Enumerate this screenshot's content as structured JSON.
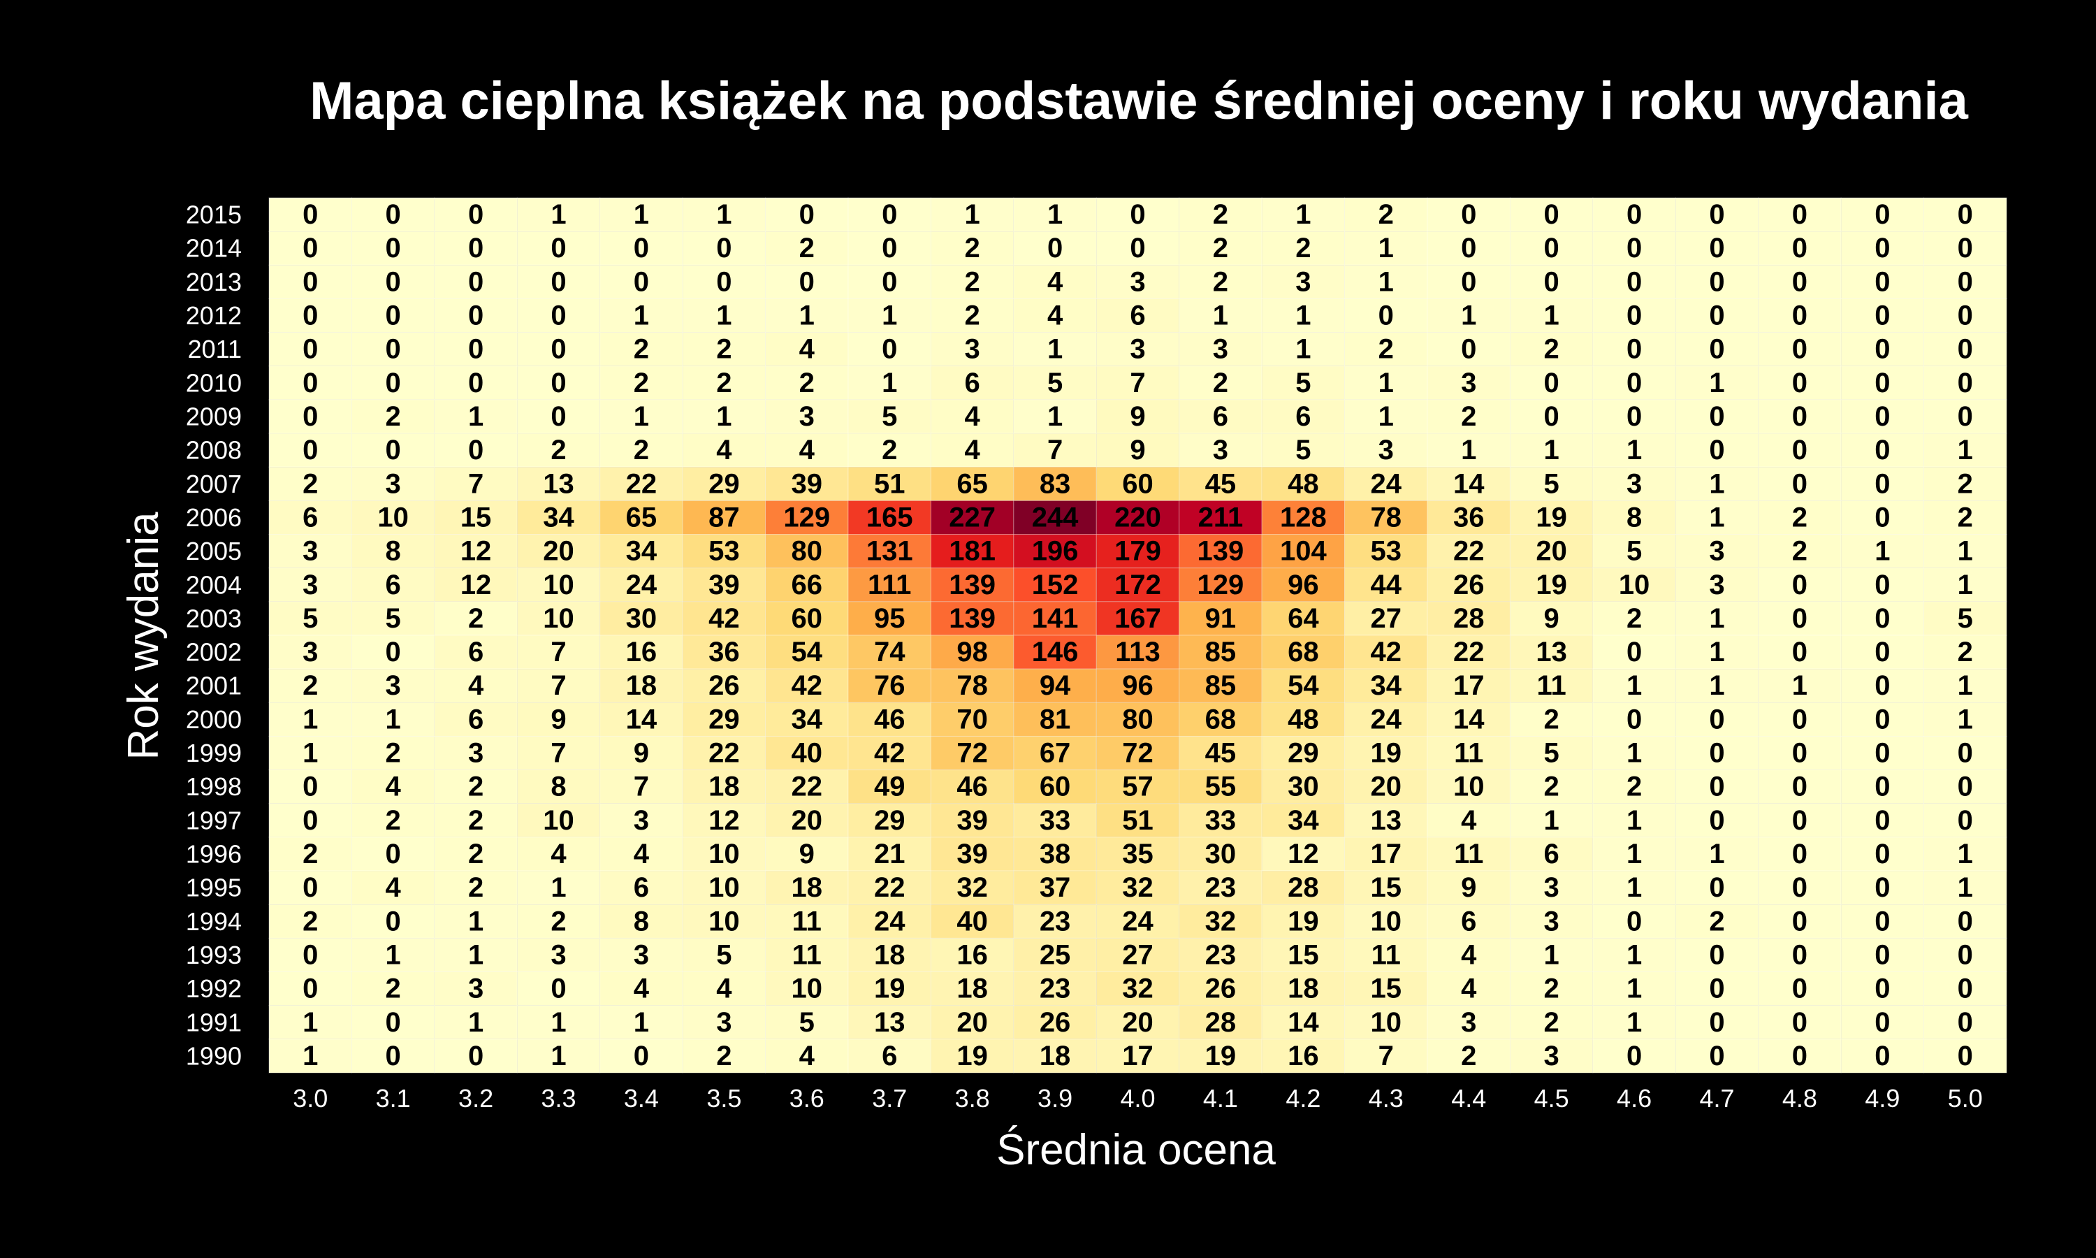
{
  "chart_data": {
    "type": "heatmap",
    "title": "Mapa cieplna książek na podstawie średniej oceny i roku wydania",
    "xlabel": "Średnia ocena",
    "ylabel": "Rok wydania",
    "x_categories": [
      "3.0",
      "3.1",
      "3.2",
      "3.3",
      "3.4",
      "3.5",
      "3.6",
      "3.7",
      "3.8",
      "3.9",
      "4.0",
      "4.1",
      "4.2",
      "4.3",
      "4.4",
      "4.5",
      "4.6",
      "4.7",
      "4.8",
      "4.9",
      "5.0"
    ],
    "y_categories": [
      "2015",
      "2014",
      "2013",
      "2012",
      "2011",
      "2010",
      "2009",
      "2008",
      "2007",
      "2006",
      "2005",
      "2004",
      "2003",
      "2002",
      "2001",
      "2000",
      "1999",
      "1998",
      "1997",
      "1996",
      "1995",
      "1994",
      "1993",
      "1992",
      "1991",
      "1990"
    ],
    "values": [
      [
        0,
        0,
        0,
        1,
        1,
        1,
        0,
        0,
        1,
        1,
        0,
        2,
        1,
        2,
        0,
        0,
        0,
        0,
        0,
        0,
        0
      ],
      [
        0,
        0,
        0,
        0,
        0,
        0,
        2,
        0,
        2,
        0,
        0,
        2,
        2,
        1,
        0,
        0,
        0,
        0,
        0,
        0,
        0
      ],
      [
        0,
        0,
        0,
        0,
        0,
        0,
        0,
        0,
        2,
        4,
        3,
        2,
        3,
        1,
        0,
        0,
        0,
        0,
        0,
        0,
        0
      ],
      [
        0,
        0,
        0,
        0,
        1,
        1,
        1,
        1,
        2,
        4,
        6,
        1,
        1,
        0,
        1,
        1,
        0,
        0,
        0,
        0,
        0
      ],
      [
        0,
        0,
        0,
        0,
        2,
        2,
        4,
        0,
        3,
        1,
        3,
        3,
        1,
        2,
        0,
        2,
        0,
        0,
        0,
        0,
        0
      ],
      [
        0,
        0,
        0,
        0,
        2,
        2,
        2,
        1,
        6,
        5,
        7,
        2,
        5,
        1,
        3,
        0,
        0,
        1,
        0,
        0,
        0
      ],
      [
        0,
        2,
        1,
        0,
        1,
        1,
        3,
        5,
        4,
        1,
        9,
        6,
        6,
        1,
        2,
        0,
        0,
        0,
        0,
        0,
        0
      ],
      [
        0,
        0,
        0,
        2,
        2,
        4,
        4,
        2,
        4,
        7,
        9,
        3,
        5,
        3,
        1,
        1,
        1,
        0,
        0,
        0,
        1
      ],
      [
        2,
        3,
        7,
        13,
        22,
        29,
        39,
        51,
        65,
        83,
        60,
        45,
        48,
        24,
        14,
        5,
        3,
        1,
        0,
        0,
        2
      ],
      [
        6,
        10,
        15,
        34,
        65,
        87,
        129,
        165,
        227,
        244,
        220,
        211,
        128,
        78,
        36,
        19,
        8,
        1,
        2,
        0,
        2
      ],
      [
        3,
        8,
        12,
        20,
        34,
        53,
        80,
        131,
        181,
        196,
        179,
        139,
        104,
        53,
        22,
        20,
        5,
        3,
        2,
        1,
        1
      ],
      [
        3,
        6,
        12,
        10,
        24,
        39,
        66,
        111,
        139,
        152,
        172,
        129,
        96,
        44,
        26,
        19,
        10,
        3,
        0,
        0,
        1
      ],
      [
        5,
        5,
        2,
        10,
        30,
        42,
        60,
        95,
        139,
        141,
        167,
        91,
        64,
        27,
        28,
        9,
        2,
        1,
        0,
        0,
        5
      ],
      [
        3,
        0,
        6,
        7,
        16,
        36,
        54,
        74,
        98,
        146,
        113,
        85,
        68,
        42,
        22,
        13,
        0,
        1,
        0,
        0,
        2
      ],
      [
        2,
        3,
        4,
        7,
        18,
        26,
        42,
        76,
        78,
        94,
        96,
        85,
        54,
        34,
        17,
        11,
        1,
        1,
        1,
        0,
        1
      ],
      [
        1,
        1,
        6,
        9,
        14,
        29,
        34,
        46,
        70,
        81,
        80,
        68,
        48,
        24,
        14,
        2,
        0,
        0,
        0,
        0,
        1
      ],
      [
        1,
        2,
        3,
        7,
        9,
        22,
        40,
        42,
        72,
        67,
        72,
        45,
        29,
        19,
        11,
        5,
        1,
        0,
        0,
        0,
        0
      ],
      [
        0,
        4,
        2,
        8,
        7,
        18,
        22,
        49,
        46,
        60,
        57,
        55,
        30,
        20,
        10,
        2,
        2,
        0,
        0,
        0,
        0
      ],
      [
        0,
        2,
        2,
        10,
        3,
        12,
        20,
        29,
        39,
        33,
        51,
        33,
        34,
        13,
        4,
        1,
        1,
        0,
        0,
        0,
        0
      ],
      [
        2,
        0,
        2,
        4,
        4,
        10,
        9,
        21,
        39,
        38,
        35,
        30,
        12,
        17,
        11,
        6,
        1,
        1,
        0,
        0,
        1
      ],
      [
        0,
        4,
        2,
        1,
        6,
        10,
        18,
        22,
        32,
        37,
        32,
        23,
        28,
        15,
        9,
        3,
        1,
        0,
        0,
        0,
        1
      ],
      [
        2,
        0,
        1,
        2,
        8,
        10,
        11,
        24,
        40,
        23,
        24,
        32,
        19,
        10,
        6,
        3,
        0,
        2,
        0,
        0,
        0
      ],
      [
        0,
        1,
        1,
        3,
        3,
        5,
        11,
        18,
        16,
        25,
        27,
        23,
        15,
        11,
        4,
        1,
        1,
        0,
        0,
        0,
        0
      ],
      [
        0,
        2,
        3,
        0,
        4,
        4,
        10,
        19,
        18,
        23,
        32,
        26,
        18,
        15,
        4,
        2,
        1,
        0,
        0,
        0,
        0
      ],
      [
        1,
        0,
        1,
        1,
        1,
        3,
        5,
        13,
        20,
        26,
        20,
        28,
        14,
        10,
        3,
        2,
        1,
        0,
        0,
        0,
        0
      ],
      [
        1,
        0,
        0,
        1,
        0,
        2,
        4,
        6,
        19,
        18,
        17,
        19,
        16,
        7,
        2,
        3,
        0,
        0,
        0,
        0,
        0
      ]
    ],
    "vmin": 0,
    "vmax": 244,
    "colormap": "YlOrRd",
    "colors": {
      "background": "#000000",
      "text": "#ffffff",
      "cell_text": "#000000",
      "cell_border": "#ffffff"
    },
    "grid": false,
    "legend": "none"
  }
}
